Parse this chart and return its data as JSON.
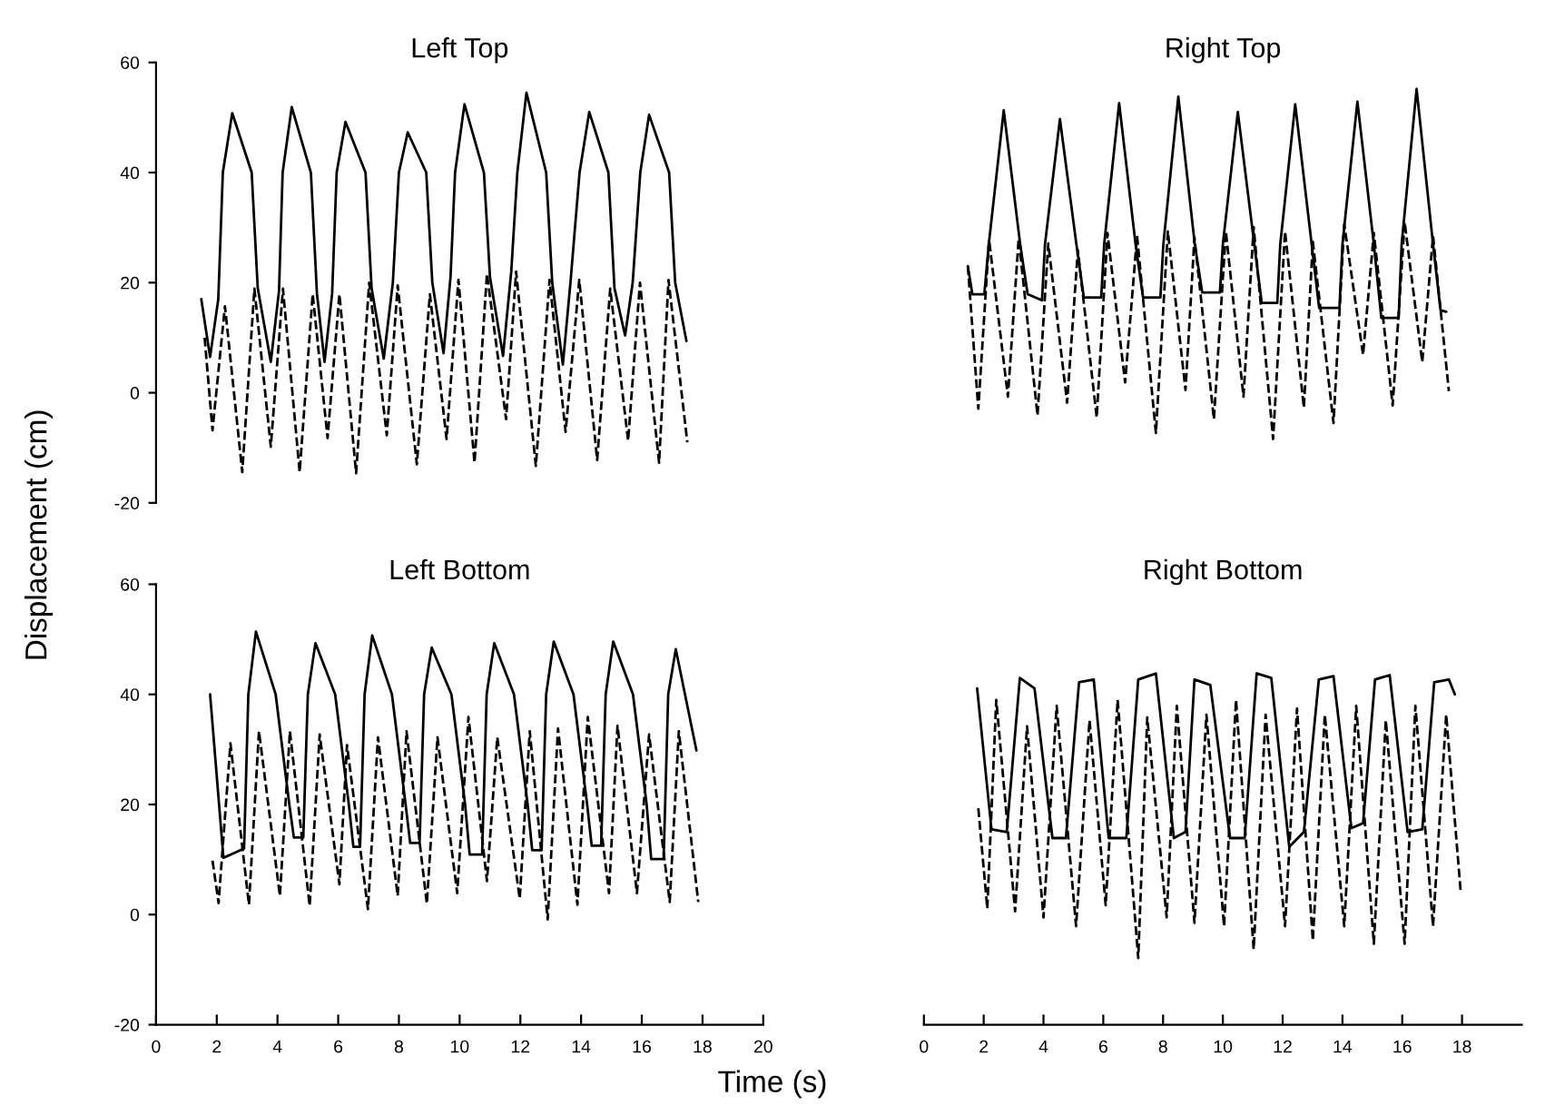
{
  "chart_data": [
    {
      "type": "line",
      "title": "Left Top",
      "ylabel": "Displacement (cm)",
      "xlim": [
        0,
        20
      ],
      "xticks": [
        0,
        2,
        4,
        6,
        8,
        10,
        12,
        14,
        16,
        18,
        20
      ],
      "ylim": [
        -20,
        60
      ],
      "yticks": [
        -20,
        0,
        20,
        40,
        60
      ],
      "tick_labels": "y",
      "grid": false,
      "legend": false,
      "series": [
        {
          "color": "#000000",
          "line_style": "solid",
          "x": [
            1.49,
            1.78,
            2.05,
            2.2,
            2.51,
            3.15,
            3.35,
            3.78,
            4.05,
            4.17,
            4.47,
            5.1,
            5.3,
            5.55,
            5.8,
            5.95,
            6.24,
            6.9,
            7.1,
            7.5,
            7.8,
            8.0,
            8.29,
            8.9,
            9.1,
            9.47,
            9.7,
            9.85,
            10.16,
            10.8,
            11.0,
            11.43,
            11.7,
            11.9,
            12.2,
            12.85,
            13.05,
            13.4,
            13.65,
            13.95,
            14.27,
            14.9,
            15.1,
            15.45,
            15.7,
            15.95,
            16.24,
            16.9,
            17.1,
            17.47
          ],
          "values": [
            17,
            6.5,
            17,
            40,
            50.8,
            40,
            19,
            5.6,
            18.5,
            40,
            51.9,
            40,
            18,
            5.6,
            18,
            40,
            49.2,
            40,
            19,
            6.2,
            20,
            40,
            47.3,
            40,
            20,
            7.2,
            21,
            40,
            52.4,
            40,
            21,
            6.7,
            22,
            40,
            54.5,
            40,
            20,
            5.1,
            20,
            40,
            51,
            40,
            19,
            10.4,
            20,
            40,
            50.5,
            40,
            20,
            9.4
          ]
        },
        {
          "color": "#000000",
          "line_style": "dashed",
          "x": [
            1.6,
            1.86,
            2.27,
            2.84,
            3.24,
            3.78,
            4.18,
            4.73,
            5.16,
            5.65,
            6.04,
            6.59,
            7.02,
            7.6,
            7.96,
            8.59,
            9.02,
            9.57,
            9.96,
            10.49,
            10.9,
            11.53,
            11.86,
            12.51,
            12.96,
            13.49,
            13.94,
            14.53,
            14.96,
            15.55,
            15.94,
            16.57,
            16.88,
            17.5
          ],
          "values": [
            10,
            -6.8,
            15.7,
            -14.4,
            18.9,
            -9.8,
            18.9,
            -14.4,
            17.9,
            -8.2,
            17.9,
            -14.6,
            20,
            -7.7,
            19.5,
            -13,
            17.9,
            -8.4,
            20.5,
            -12.7,
            21.6,
            -4.8,
            22,
            -13.3,
            20.5,
            -7.1,
            20.5,
            -12.2,
            18.9,
            -8.7,
            20,
            -12.7,
            20.5,
            -9
          ]
        }
      ]
    },
    {
      "type": "line",
      "title": "Right Top",
      "xlim": [
        0,
        18
      ],
      "xticks": [
        0,
        2,
        4,
        6,
        8,
        10,
        12,
        14,
        16,
        18
      ],
      "ylim": [
        -20,
        60
      ],
      "yticks": [
        -20,
        0,
        20,
        40,
        60
      ],
      "tick_labels": false,
      "grid": false,
      "legend": false,
      "series": [
        {
          "color": "#000000",
          "line_style": "solid",
          "x": [
            1.47,
            1.62,
            2.02,
            2.17,
            2.67,
            3.22,
            3.47,
            3.95,
            4.05,
            4.55,
            5.1,
            5.35,
            5.93,
            6.03,
            6.53,
            7.08,
            7.33,
            7.91,
            8.01,
            8.51,
            9.06,
            9.31,
            9.9,
            10.0,
            10.5,
            11.05,
            11.3,
            11.82,
            11.92,
            12.42,
            12.97,
            13.22,
            13.9,
            14.0,
            14.5,
            15.05,
            15.3,
            15.88,
            15.98,
            16.48,
            17.03,
            17.28,
            17.47
          ],
          "values": [
            23,
            17.9,
            17.9,
            27,
            51.3,
            27,
            17.9,
            16.8,
            27,
            49.7,
            27,
            17.3,
            17.3,
            27,
            52.6,
            27,
            17.3,
            17.3,
            27,
            53.8,
            27,
            18.2,
            18.2,
            27,
            51,
            27,
            16.3,
            16.3,
            27,
            52.4,
            27,
            15.4,
            15.4,
            27,
            52.9,
            27,
            13.6,
            13.6,
            27,
            55.2,
            27,
            15,
            14.7
          ]
        },
        {
          "color": "#000000",
          "line_style": "dashed",
          "x": [
            1.47,
            1.82,
            2.18,
            2.81,
            3.17,
            3.8,
            4.16,
            4.79,
            5.15,
            5.78,
            6.14,
            6.73,
            7.13,
            7.76,
            8.16,
            8.75,
            9.05,
            9.7,
            10.1,
            10.69,
            11.03,
            11.68,
            12.08,
            12.71,
            13.01,
            13.7,
            14.06,
            14.69,
            15.05,
            15.68,
            16.08,
            16.67,
            17.03,
            17.56
          ],
          "values": [
            23,
            -2.9,
            27.8,
            -0.7,
            28,
            -4.1,
            27.1,
            -1.8,
            25.9,
            -4.5,
            29,
            1.9,
            28.5,
            -7.3,
            29.3,
            0.5,
            28.2,
            -4.8,
            29.3,
            -0.7,
            30.1,
            -8.4,
            29.3,
            -2.7,
            27.4,
            -5.5,
            30.6,
            6.9,
            29,
            -2.3,
            31,
            5.6,
            28.5,
            0.3
          ]
        }
      ]
    },
    {
      "type": "line",
      "title": "Left Bottom",
      "xlabel": "Time (s)",
      "xlim": [
        0,
        20
      ],
      "xticks": [
        0,
        2,
        4,
        6,
        8,
        10,
        12,
        14,
        16,
        18,
        20
      ],
      "ylim": [
        -20,
        60
      ],
      "yticks": [
        -20,
        0,
        20,
        40,
        60
      ],
      "grid": false,
      "legend": false,
      "series": [
        {
          "color": "#000000",
          "line_style": "solid",
          "x": [
            1.78,
            2.22,
            2.9,
            3.04,
            3.29,
            3.94,
            4.39,
            4.54,
            4.85,
            5.0,
            5.25,
            5.9,
            6.35,
            6.5,
            6.72,
            6.87,
            7.12,
            7.77,
            8.22,
            8.37,
            8.68,
            8.83,
            9.08,
            9.73,
            10.18,
            10.33,
            10.74,
            10.89,
            11.14,
            11.79,
            12.24,
            12.39,
            12.7,
            12.85,
            13.1,
            13.75,
            14.2,
            14.35,
            14.66,
            14.81,
            15.06,
            15.71,
            16.16,
            16.31,
            16.72,
            16.87,
            17.12,
            17.8
          ],
          "values": [
            40,
            10.3,
            12,
            40,
            51.4,
            40,
            20,
            14,
            14,
            40,
            49.3,
            40,
            20,
            12.3,
            12.3,
            40,
            50.7,
            40,
            20,
            13,
            13,
            40,
            48.5,
            40,
            20,
            10.9,
            10.9,
            40,
            49.3,
            40,
            20,
            11.7,
            11.7,
            40,
            49.6,
            40,
            20,
            12.5,
            12.5,
            40,
            49.6,
            40,
            20,
            10.1,
            10.1,
            40,
            48.2,
            29.8
          ]
        },
        {
          "color": "#000000",
          "line_style": "dashed",
          "x": [
            1.86,
            2.06,
            2.45,
            3.06,
            3.39,
            4.08,
            4.41,
            5.06,
            5.39,
            6.04,
            6.29,
            6.98,
            7.31,
            7.96,
            8.25,
            8.92,
            9.27,
            9.92,
            10.29,
            10.9,
            11.24,
            11.98,
            12.31,
            12.9,
            13.24,
            13.88,
            14.22,
            14.92,
            15.2,
            15.84,
            16.24,
            16.92,
            17.22,
            17.86
          ],
          "values": [
            9.8,
            2.1,
            31.1,
            1.8,
            33.3,
            3.4,
            33.3,
            1.6,
            32.7,
            5.5,
            30.8,
            1,
            32.2,
            3.4,
            33.3,
            2,
            32.2,
            3.9,
            35.9,
            6.1,
            32.2,
            2.9,
            33.3,
            -0.9,
            33.8,
            1.8,
            35.9,
            3.9,
            34.3,
            3.9,
            32.7,
            2.3,
            33.3,
            2.3
          ]
        }
      ]
    },
    {
      "type": "line",
      "title": "Right Bottom",
      "xlim": [
        0,
        20
      ],
      "xticks": [
        0,
        2,
        4,
        6,
        8,
        10,
        12,
        14,
        16,
        18
      ],
      "ylim": [
        -20,
        60
      ],
      "yticks": [
        -20,
        0,
        20,
        40,
        60
      ],
      "tick_labels": "x",
      "grid": false,
      "legend": false,
      "series": [
        {
          "color": "#000000",
          "line_style": "solid",
          "x": [
            1.78,
            2.26,
            2.77,
            3.21,
            3.7,
            4.3,
            4.75,
            5.19,
            5.68,
            6.18,
            6.77,
            7.17,
            7.76,
            8.36,
            8.75,
            9.05,
            9.58,
            10.24,
            10.73,
            11.13,
            11.62,
            12.22,
            12.71,
            13.21,
            13.7,
            14.3,
            14.69,
            15.09,
            15.58,
            16.18,
            16.67,
            17.07,
            17.56,
            17.76
          ],
          "values": [
            41.1,
            15.5,
            15,
            43,
            41.1,
            13.9,
            13.9,
            42.2,
            42.7,
            13.9,
            13.9,
            42.7,
            43.8,
            13.9,
            15,
            42.7,
            41.7,
            13.9,
            13.9,
            43.8,
            43,
            12.3,
            15,
            42.7,
            43.3,
            15.7,
            16.6,
            42.7,
            43.5,
            15,
            15.5,
            42.2,
            42.7,
            40
          ]
        },
        {
          "color": "#000000",
          "line_style": "dashed",
          "x": [
            1.82,
            2.12,
            2.42,
            3.05,
            3.45,
            4.0,
            4.44,
            5.09,
            5.54,
            6.08,
            6.48,
            7.17,
            7.47,
            8.12,
            8.46,
            9.05,
            9.45,
            10.04,
            10.44,
            11.03,
            11.43,
            12.08,
            12.48,
            13.01,
            13.41,
            14.06,
            14.46,
            15.05,
            15.45,
            16.08,
            16.44,
            17.03,
            17.47,
            17.96
          ],
          "values": [
            19.3,
            1.1,
            39,
            0.6,
            34.2,
            -0.5,
            37.9,
            -2.1,
            35.3,
            1.7,
            39,
            -7.9,
            35.8,
            -0.5,
            37.9,
            -1.5,
            36.3,
            -2.1,
            39,
            -6.3,
            36.3,
            -2.1,
            37.4,
            -4.7,
            36.3,
            -2.1,
            37.9,
            -5.3,
            35.3,
            -5.3,
            37.9,
            -2.1,
            36.3,
            3.8
          ]
        }
      ]
    }
  ]
}
